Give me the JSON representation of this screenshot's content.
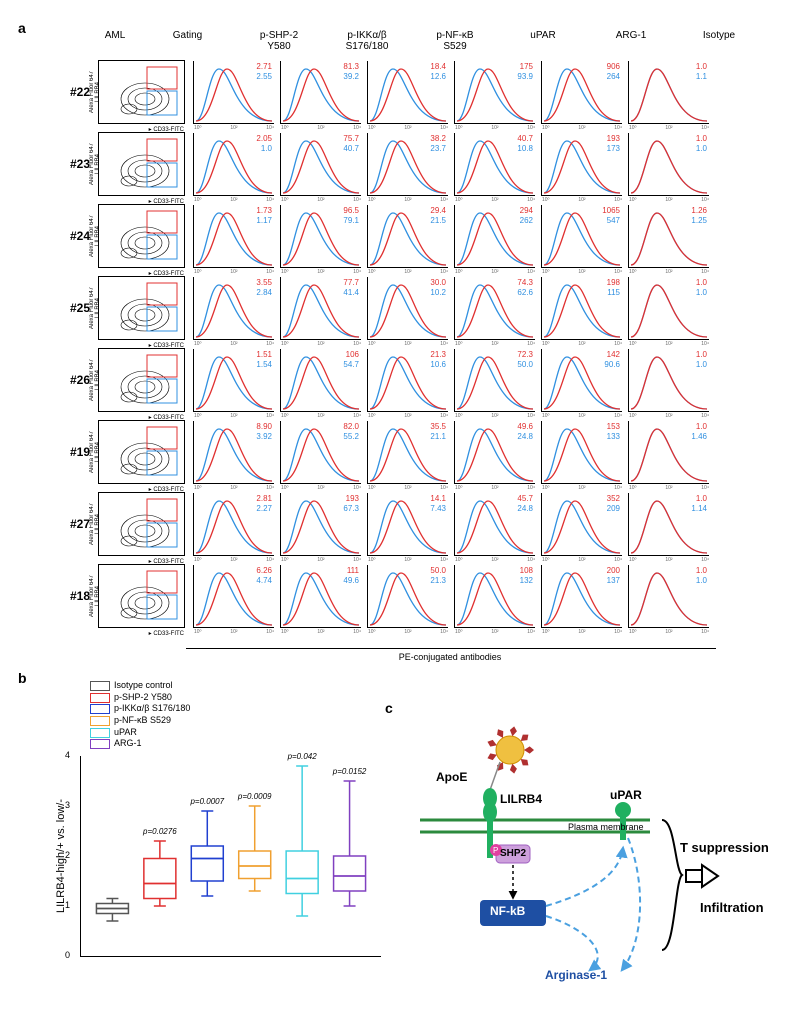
{
  "panel_a": {
    "label": "a",
    "headers": {
      "aml": "AML",
      "gating": "Gating",
      "columns": [
        "p-SHP-2\nY580",
        "p-IKKα/β\nS176/180",
        "p-NF-κB\nS529",
        "uPAR",
        "ARG-1",
        "Isotype"
      ]
    },
    "gate_y_axis": "Alexa Fluor 647\nLILRB4",
    "gate_x_axis": "CD33-FITC",
    "pe_label": "PE-conjugated antibodies",
    "samples": [
      {
        "id": "#22",
        "vals": [
          {
            "r": "2.71",
            "b": "2.55"
          },
          {
            "r": "81.3",
            "b": "39.2"
          },
          {
            "r": "18.4",
            "b": "12.6"
          },
          {
            "r": "175",
            "b": "93.9"
          },
          {
            "r": "906",
            "b": "264"
          },
          {
            "r": "1.0",
            "b": "1.1"
          }
        ]
      },
      {
        "id": "#23",
        "vals": [
          {
            "r": "2.05",
            "b": "1.0"
          },
          {
            "r": "75.7",
            "b": "40.7"
          },
          {
            "r": "38.2",
            "b": "23.7"
          },
          {
            "r": "40.7",
            "b": "10.8"
          },
          {
            "r": "193",
            "b": "173"
          },
          {
            "r": "1.0",
            "b": "1.0"
          }
        ]
      },
      {
        "id": "#24",
        "vals": [
          {
            "r": "1.73",
            "b": "1.17"
          },
          {
            "r": "96.5",
            "b": "79.1"
          },
          {
            "r": "29.4",
            "b": "21.5"
          },
          {
            "r": "294",
            "b": "262"
          },
          {
            "r": "1065",
            "b": "547"
          },
          {
            "r": "1.26",
            "b": "1.25"
          }
        ]
      },
      {
        "id": "#25",
        "vals": [
          {
            "r": "3.55",
            "b": "2.84"
          },
          {
            "r": "77.7",
            "b": "41.4"
          },
          {
            "r": "30.0",
            "b": "10.2"
          },
          {
            "r": "74.3",
            "b": "62.6"
          },
          {
            "r": "198",
            "b": "115"
          },
          {
            "r": "1.0",
            "b": "1.0"
          }
        ]
      },
      {
        "id": "#26",
        "vals": [
          {
            "r": "1.51",
            "b": "1.54"
          },
          {
            "r": "106",
            "b": "54.7"
          },
          {
            "r": "21.3",
            "b": "10.6"
          },
          {
            "r": "72.3",
            "b": "50.0"
          },
          {
            "r": "142",
            "b": "90.6"
          },
          {
            "r": "1.0",
            "b": "1.0"
          }
        ]
      },
      {
        "id": "#19",
        "vals": [
          {
            "r": "8.90",
            "b": "3.92"
          },
          {
            "r": "82.0",
            "b": "55.2"
          },
          {
            "r": "35.5",
            "b": "21.1"
          },
          {
            "r": "49.6",
            "b": "24.8"
          },
          {
            "r": "153",
            "b": "133"
          },
          {
            "r": "1.0",
            "b": "1.46"
          }
        ]
      },
      {
        "id": "#27",
        "vals": [
          {
            "r": "2.81",
            "b": "2.27"
          },
          {
            "r": "193",
            "b": "67.3"
          },
          {
            "r": "14.1",
            "b": "7.43"
          },
          {
            "r": "45.7",
            "b": "24.8"
          },
          {
            "r": "352",
            "b": "209"
          },
          {
            "r": "1.0",
            "b": "1.14"
          }
        ]
      },
      {
        "id": "#18",
        "vals": [
          {
            "r": "6.26",
            "b": "4.74"
          },
          {
            "r": "111",
            "b": "49.6"
          },
          {
            "r": "50.0",
            "b": "21.3"
          },
          {
            "r": "108",
            "b": "132"
          },
          {
            "r": "200",
            "b": "137"
          },
          {
            "r": "1.0",
            "b": "1.0"
          }
        ]
      }
    ],
    "colors": {
      "red": "#e03030",
      "blue": "#3090e0"
    }
  },
  "panel_b": {
    "label": "b",
    "y_title": "LILRB4-high/+ vs. low/-",
    "legend": [
      {
        "name": "Isotype control",
        "color": "#555"
      },
      {
        "name": "p-SHP-2 Y580",
        "color": "#e03030"
      },
      {
        "name": "p-IKKα/β S176/180",
        "color": "#2040d0"
      },
      {
        "name": "p-NF-κB S529",
        "color": "#f0a030"
      },
      {
        "name": "uPAR",
        "color": "#40d0e0"
      },
      {
        "name": "ARG-1",
        "color": "#8040c0"
      }
    ],
    "ylim": [
      0,
      4
    ],
    "ytick_step": 1,
    "boxes": [
      {
        "q1": 0.85,
        "med": 0.95,
        "q3": 1.05,
        "lo": 0.7,
        "hi": 1.15,
        "color": "#555",
        "p": null
      },
      {
        "q1": 1.15,
        "med": 1.45,
        "q3": 1.95,
        "lo": 1.0,
        "hi": 2.3,
        "color": "#e03030",
        "p": "p=0.0276"
      },
      {
        "q1": 1.5,
        "med": 1.95,
        "q3": 2.2,
        "lo": 1.2,
        "hi": 2.9,
        "color": "#2040d0",
        "p": "p=0.0007"
      },
      {
        "q1": 1.55,
        "med": 1.8,
        "q3": 2.1,
        "lo": 1.3,
        "hi": 3.0,
        "color": "#f0a030",
        "p": "p=0.0009"
      },
      {
        "q1": 1.25,
        "med": 1.55,
        "q3": 2.1,
        "lo": 0.8,
        "hi": 3.8,
        "color": "#40d0e0",
        "p": "p=0.042"
      },
      {
        "q1": 1.3,
        "med": 1.6,
        "q3": 2.0,
        "lo": 1.0,
        "hi": 3.5,
        "color": "#8040c0",
        "p": "p=0.0152"
      }
    ]
  },
  "panel_c": {
    "label": "c",
    "labels": {
      "apoe": "ApoE",
      "lilrb4": "LILRB4",
      "upar": "uPAR",
      "pm": "Plasma membrane",
      "shp2": "SHP2",
      "nfkb": "NF-kB",
      "arg": "Arginase-1",
      "tsup": "T suppression",
      "inf": "Infiltration"
    },
    "colors": {
      "membrane": "#2b8a3e",
      "receptor": "#20b060",
      "shp2": "#cda0dc",
      "p": "#e040a0",
      "nfkb": "#1e4fa3",
      "arrow": "#4aa0e0",
      "lig": "#b03030",
      "brace": "#000"
    }
  }
}
